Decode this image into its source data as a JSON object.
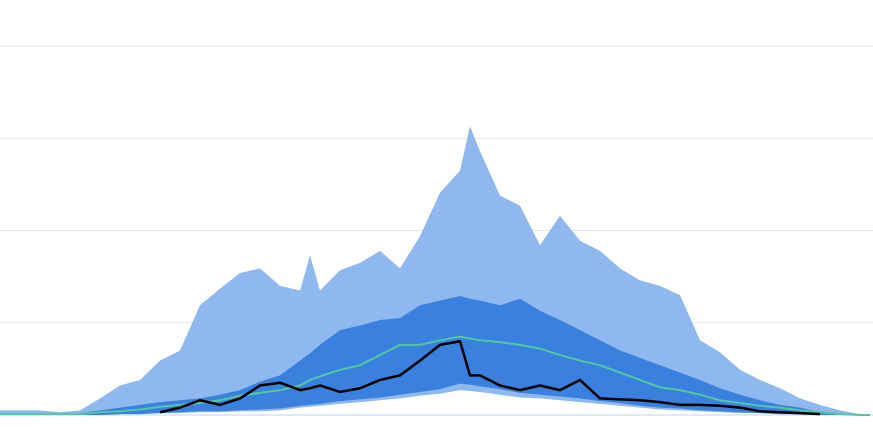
{
  "chart_data": {
    "type": "band",
    "x": [
      0,
      2,
      4,
      6,
      8,
      10,
      12,
      14,
      16,
      18,
      20,
      22,
      24,
      26,
      28,
      30,
      31,
      32,
      34,
      36,
      38,
      40,
      42,
      44,
      46,
      47,
      48,
      50,
      52,
      54,
      56,
      58,
      60,
      62,
      64,
      66,
      68,
      70,
      72,
      74,
      76,
      78,
      80,
      82,
      84,
      86,
      87
    ],
    "xlim": [
      0,
      87.3
    ],
    "ylim": [
      0,
      450
    ],
    "yticks": [
      0,
      100,
      200,
      300,
      400
    ],
    "grid": true,
    "bands": [
      {
        "color": "#8fb8ef",
        "upper": [
          5,
          5,
          5,
          3,
          5,
          18,
          32,
          38,
          59,
          70,
          119,
          137,
          154,
          159,
          140,
          135,
          173,
          135,
          157,
          165,
          178,
          159,
          194,
          241,
          265,
          313,
          286,
          238,
          227,
          184,
          216,
          189,
          178,
          159,
          146,
          140,
          130,
          81,
          68,
          49,
          38,
          29,
          18,
          11,
          5,
          1,
          0
        ],
        "lower": [
          0,
          0,
          0,
          0,
          0,
          0,
          1,
          1,
          2,
          2,
          3,
          3,
          4,
          4,
          5,
          8,
          9,
          10,
          12,
          14,
          16,
          18,
          21,
          23,
          27,
          26,
          25,
          22,
          19,
          18,
          16,
          14,
          12,
          10,
          8,
          6,
          5,
          4,
          3,
          2,
          2,
          1,
          1,
          0,
          0,
          0,
          0
        ]
      },
      {
        "color": "#3a80de",
        "upper": [
          1,
          1,
          1,
          1,
          2,
          5,
          8,
          11,
          14,
          16,
          18,
          22,
          27,
          36,
          43,
          59,
          67,
          76,
          92,
          97,
          103,
          105,
          119,
          124,
          129,
          126,
          124,
          119,
          126,
          113,
          103,
          92,
          81,
          70,
          62,
          54,
          46,
          38,
          29,
          22,
          16,
          11,
          8,
          3,
          1,
          0,
          0
        ],
        "lower": [
          0,
          0,
          0,
          0,
          0,
          0,
          1,
          1,
          2,
          3,
          4,
          4,
          5,
          6,
          7,
          10,
          11,
          12,
          15,
          17,
          19,
          22,
          25,
          28,
          34,
          33,
          31,
          28,
          24,
          22,
          20,
          18,
          15,
          13,
          10,
          8,
          7,
          5,
          4,
          3,
          2,
          1,
          1,
          0,
          0,
          0,
          0
        ]
      }
    ],
    "lines": [
      {
        "color": "#52c7a3",
        "values": [
          1,
          1,
          1,
          1,
          1,
          3,
          4,
          6,
          9,
          11,
          13,
          16,
          21,
          24,
          27,
          32,
          38,
          42,
          49,
          54,
          65,
          76,
          76,
          81,
          85,
          83,
          81,
          79,
          76,
          72,
          65,
          59,
          54,
          46,
          38,
          30,
          27,
          22,
          16,
          13,
          10,
          8,
          5,
          3,
          1,
          0,
          0
        ]
      },
      {
        "color": "#000000",
        "values": [
          null,
          null,
          null,
          null,
          null,
          null,
          null,
          null,
          3,
          8,
          16,
          11,
          18,
          32,
          35,
          27,
          29,
          32,
          25,
          29,
          38,
          43,
          59,
          76,
          80,
          43,
          43,
          32,
          27,
          32,
          27,
          38,
          18,
          17,
          16,
          14,
          11,
          11,
          10,
          8,
          4,
          3,
          2,
          1,
          null,
          null,
          null
        ]
      }
    ]
  }
}
